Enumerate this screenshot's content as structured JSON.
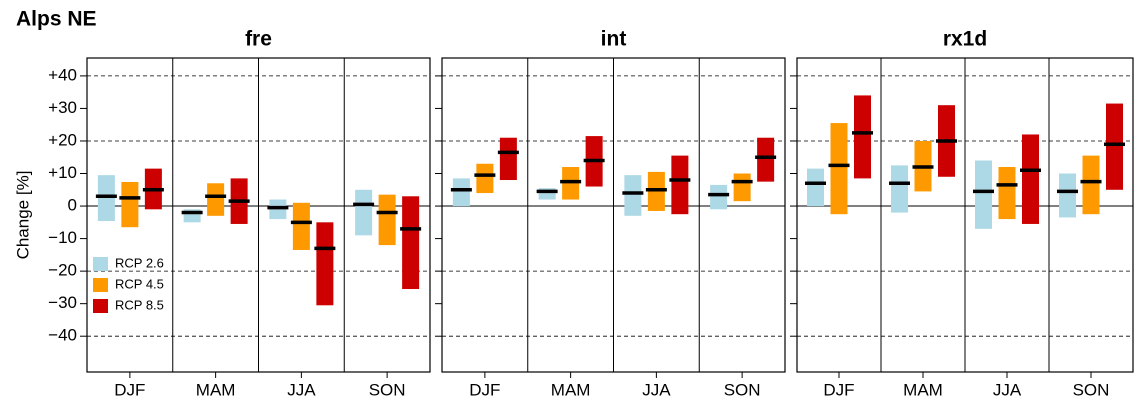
{
  "title": "Alps NE",
  "chart_data": [
    {
      "type": "range-bar",
      "title": "fre",
      "ylabel": "Change [%]",
      "categories": [
        "DJF",
        "MAM",
        "JJA",
        "SON"
      ],
      "ylim": [
        -51,
        45.5
      ],
      "yticks": [
        {
          "value": -40,
          "label": "−40"
        },
        {
          "value": -30,
          "label": "−30"
        },
        {
          "value": -20,
          "label": "−20"
        },
        {
          "value": -10,
          "label": "−10"
        },
        0,
        {
          "value": 10,
          "label": "+10"
        },
        {
          "value": 20,
          "label": "+20"
        },
        {
          "value": 30,
          "label": "+30"
        },
        {
          "value": 40,
          "label": "+40"
        }
      ],
      "dashed_lines": [
        -40,
        -20,
        20,
        40
      ],
      "zero_line": 0,
      "legend": "lower-left",
      "series": [
        {
          "name": "RCP 2.6",
          "color": "#add8e6",
          "low": [
            -4.6,
            -5,
            -4,
            -9
          ],
          "high": [
            9.5,
            -1,
            2,
            5
          ],
          "median": [
            3,
            -2,
            -0.5,
            0.5
          ]
        },
        {
          "name": "RCP 4.5",
          "color": "#ff9900",
          "low": [
            -6.5,
            -3,
            -13.5,
            -12
          ],
          "high": [
            7.4,
            7,
            1,
            3.5
          ],
          "median": [
            2.5,
            3,
            -5,
            -2
          ]
        },
        {
          "name": "RCP 8.5",
          "color": "#cc0000",
          "low": [
            -1,
            -5.5,
            -30.5,
            -25.5
          ],
          "high": [
            11.5,
            8.5,
            -5,
            3
          ],
          "median": [
            5,
            1.5,
            -13,
            -7
          ]
        }
      ]
    },
    {
      "type": "range-bar",
      "title": "int",
      "categories": [
        "DJF",
        "MAM",
        "JJA",
        "SON"
      ],
      "ylim": [
        -51,
        45.5
      ],
      "yticks": [
        -40,
        -30,
        -20,
        -10,
        0,
        10,
        20,
        30,
        40
      ],
      "dashed_lines": [
        -40,
        -20,
        20,
        40
      ],
      "zero_line": 0,
      "series": [
        {
          "name": "RCP 2.6",
          "color": "#add8e6",
          "low": [
            0,
            2,
            -3,
            -1
          ],
          "high": [
            8.5,
            5.5,
            9.5,
            6.5
          ],
          "median": [
            5,
            4.5,
            4,
            3.5
          ]
        },
        {
          "name": "RCP 4.5",
          "color": "#ff9900",
          "low": [
            4,
            2,
            -1.5,
            1.5
          ],
          "high": [
            13,
            12,
            10.5,
            10
          ],
          "median": [
            9.5,
            7.5,
            5,
            7.5
          ]
        },
        {
          "name": "RCP 8.5",
          "color": "#cc0000",
          "low": [
            8,
            6,
            -2.5,
            7.5
          ],
          "high": [
            21,
            21.5,
            15.5,
            21
          ],
          "median": [
            16.5,
            14,
            8,
            15
          ]
        }
      ]
    },
    {
      "type": "range-bar",
      "title": "rx1d",
      "categories": [
        "DJF",
        "MAM",
        "JJA",
        "SON"
      ],
      "ylim": [
        -51,
        45.5
      ],
      "yticks": [
        -40,
        -30,
        -20,
        -10,
        0,
        10,
        20,
        30,
        40
      ],
      "dashed_lines": [
        -40,
        -20,
        20,
        40
      ],
      "zero_line": 0,
      "series": [
        {
          "name": "RCP 2.6",
          "color": "#add8e6",
          "low": [
            0,
            -2,
            -7,
            -3.5
          ],
          "high": [
            11.5,
            12.5,
            14,
            10
          ],
          "median": [
            7,
            7,
            4.5,
            4.5
          ]
        },
        {
          "name": "RCP 4.5",
          "color": "#ff9900",
          "low": [
            -2.5,
            4.5,
            -4,
            -2.5
          ],
          "high": [
            25.5,
            20,
            12,
            15.5
          ],
          "median": [
            12.5,
            12,
            6.5,
            7.5
          ]
        },
        {
          "name": "RCP 8.5",
          "color": "#cc0000",
          "low": [
            8.5,
            9,
            -5.5,
            5
          ],
          "high": [
            34,
            31,
            22,
            31.5
          ],
          "median": [
            22.5,
            20,
            11,
            19
          ]
        }
      ]
    }
  ]
}
